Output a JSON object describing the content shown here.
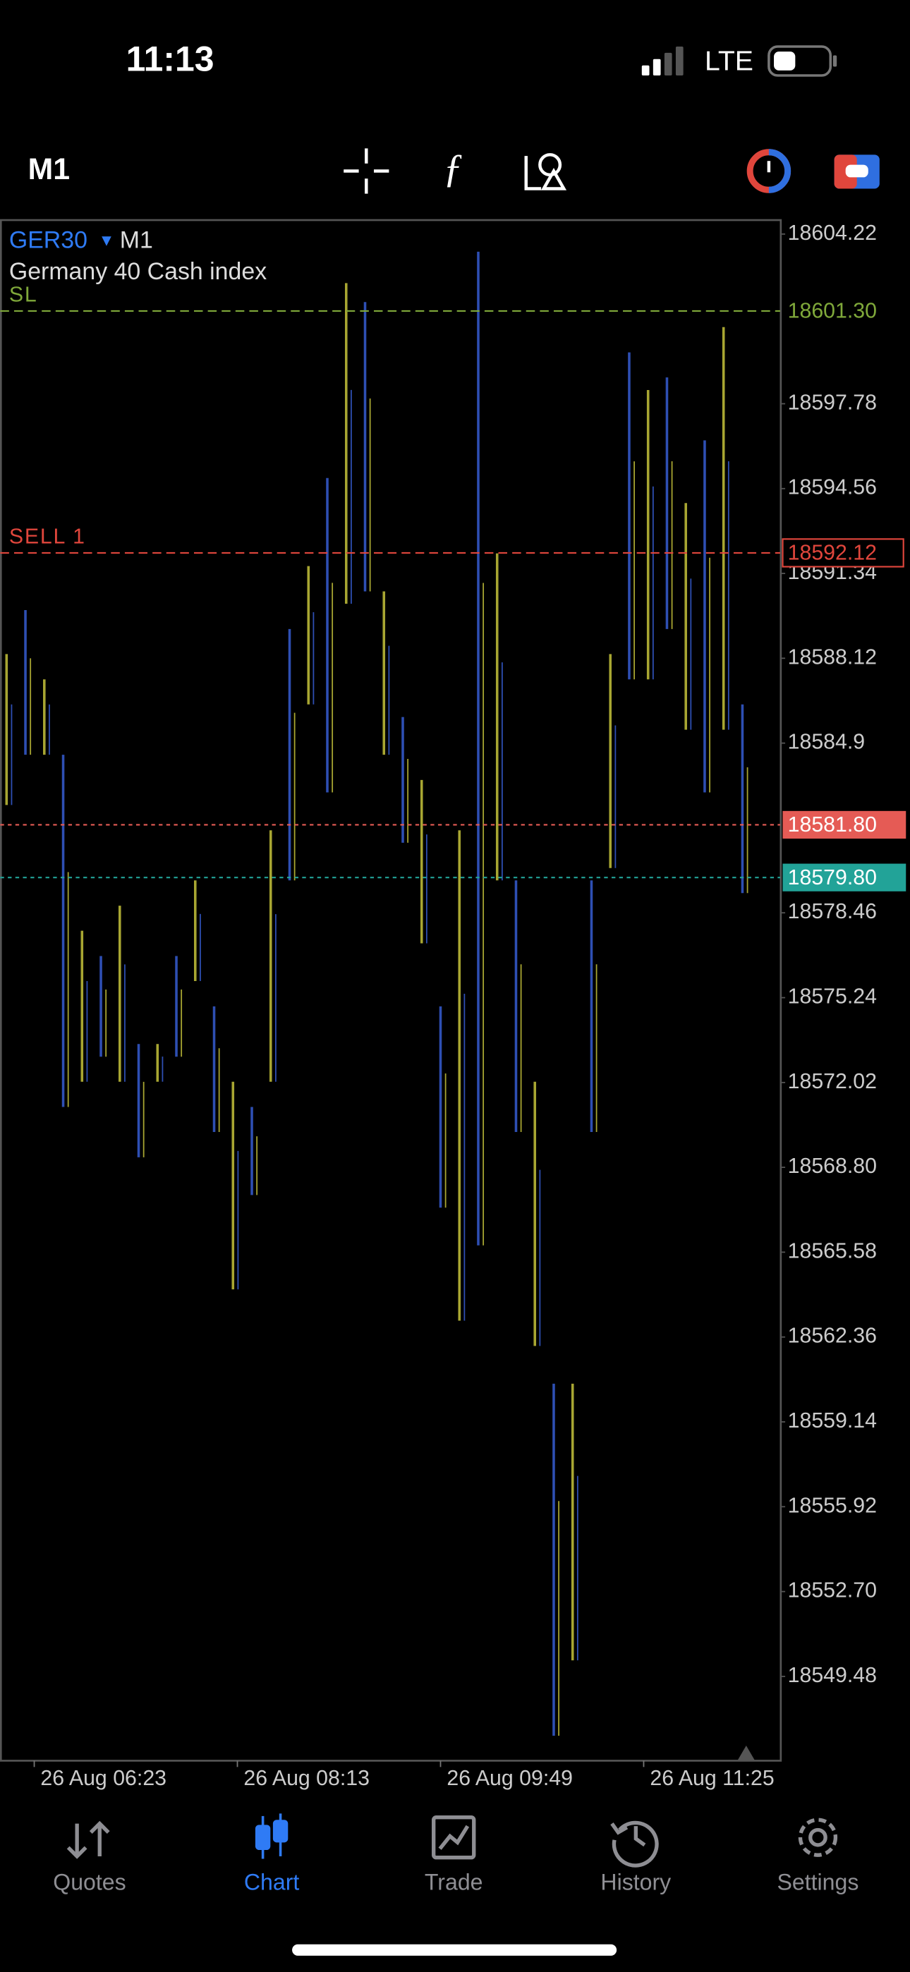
{
  "status_bar": {
    "time": "11:13",
    "network": "LTE"
  },
  "toolbar": {
    "timeframe": "M1"
  },
  "chart_data": {
    "type": "range",
    "symbol": "GER30",
    "timeframe": "M1",
    "description": "Germany 40 Cash index",
    "color": "#a8a632",
    "alt_color": "#2e4fb3",
    "ylim": [
      18546.28,
      18604.75
    ],
    "yticks": [
      18604.22,
      18597.78,
      18594.56,
      18591.34,
      18588.12,
      18584.9,
      18578.46,
      18575.24,
      18572.02,
      {
        "value": 18568.8,
        "label": "18568.80"
      },
      18565.58,
      18562.36,
      18559.14,
      18555.92,
      {
        "value": 18552.7,
        "label": "18552.70"
      },
      18549.48
    ],
    "xticks": [
      "26 Aug 06:23",
      "26 Aug 08:13",
      "26 Aug 09:49",
      "26 Aug 11:25"
    ],
    "highs": [
      18588.28,
      18589.95,
      18587.32,
      18584.46,
      18577.78,
      18576.82,
      18578.73,
      18573.48,
      18573.48,
      18576.82,
      18579.69,
      18574.91,
      18572.05,
      18571.09,
      18581.59,
      18589.23,
      18591.62,
      18594.96,
      18602.36,
      18601.64,
      18590.66,
      18585.89,
      18583.5,
      18574.91,
      18581.59,
      18603.55,
      18592.1,
      18579.69,
      18572.05,
      18560.59,
      18560.59,
      18579.69,
      18588.28,
      18599.73,
      18598.3,
      18598.78,
      18594.01,
      18596.39,
      18600.69,
      18586.37
    ],
    "lows": [
      18582.55,
      18584.46,
      18584.46,
      18571.09,
      18572.05,
      18573.0,
      18572.05,
      18569.18,
      18572.05,
      18573.0,
      18575.87,
      18570.14,
      18564.17,
      18567.75,
      18572.05,
      18579.69,
      18586.37,
      18583.03,
      18590.19,
      18590.66,
      18584.46,
      18581.12,
      18577.3,
      18567.27,
      18562.98,
      18565.84,
      18579.69,
      18570.14,
      18562.02,
      18547.23,
      18550.09,
      18570.14,
      18580.16,
      18587.32,
      18587.32,
      18589.23,
      18585.41,
      18583.03,
      18585.41,
      18579.21
    ],
    "levels": [
      {
        "name": "SL",
        "price": {
          "value": 18601.3,
          "label": "18601.30"
        },
        "color": "#7fa83a",
        "style": "dashed",
        "box": "text"
      },
      {
        "name": "SELL 1",
        "price": 18592.12,
        "color": "#e0463c",
        "style": "dashed",
        "box": "outline"
      },
      {
        "price": {
          "value": 18581.8,
          "label": "18581.80"
        },
        "color": "#e55b55",
        "style": "dotted",
        "box": "filled"
      },
      {
        "price": {
          "value": 18579.8,
          "label": "18579.80"
        },
        "color": "#22a398",
        "style": "dotted",
        "box": "filled"
      }
    ]
  },
  "tabs": [
    {
      "label": "Quotes",
      "active": false
    },
    {
      "label": "Chart",
      "active": true
    },
    {
      "label": "Trade",
      "active": false
    },
    {
      "label": "History",
      "active": false
    },
    {
      "label": "Settings",
      "active": false
    }
  ]
}
